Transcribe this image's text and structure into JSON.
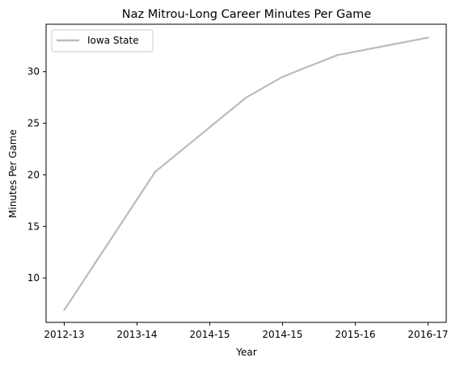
{
  "chart_data": {
    "type": "line",
    "title": "Naz Mitrou-Long Career Minutes Per Game",
    "xlabel": "Year",
    "ylabel": "Minutes Per Game",
    "x": [
      "2012-13",
      "2013-14",
      "2014-15",
      "2014-15",
      "2015-16",
      "2016-17"
    ],
    "series": [
      {
        "name": "Iowa State",
        "values": [
          6.9,
          20.3,
          27.5,
          29.5,
          31.6,
          33.3
        ],
        "color": "#bbbbbb"
      }
    ],
    "x_positions": [
      0,
      1.25,
      2.5,
      3.0,
      3.75,
      5.0
    ],
    "xticks": [
      {
        "label": "2012-13",
        "pos": 0
      },
      {
        "label": "2013-14",
        "pos": 1
      },
      {
        "label": "2014-15",
        "pos": 2
      },
      {
        "label": "2014-15",
        "pos": 3
      },
      {
        "label": "2015-16",
        "pos": 4
      },
      {
        "label": "2016-17",
        "pos": 5
      }
    ],
    "xlim": [
      -0.25,
      5.25
    ],
    "ylim": [
      5.7,
      34.6
    ],
    "yticks": [
      10,
      15,
      20,
      25,
      30
    ],
    "grid": false,
    "legend": "upper-left"
  }
}
